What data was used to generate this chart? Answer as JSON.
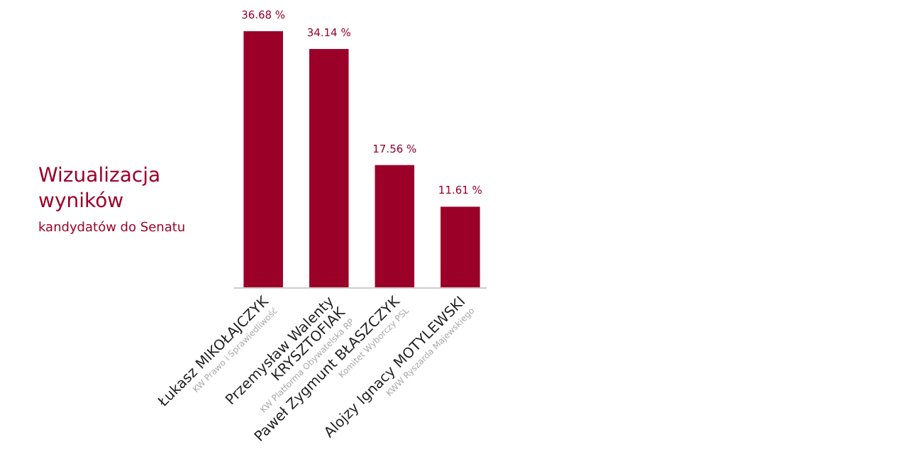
{
  "chart_data": {
    "type": "bar",
    "title": "Wizualizacja wyników",
    "subtitle": "kandydatów do Senatu",
    "categories": [
      "Łukasz MIKOŁAJCZYK\nKW Prawo i Sprawiedliwość",
      "Przemysław Walenty\nKRYSZTOFIAK\nKW Platforma Obywatelska RP",
      "Paweł Zygmunt BŁASZCZYK\nKomitet Wyborczy PSL",
      "Alojzy Ignacy MOTYLEWSKI\nKWW Ryszarda Majewskiego"
    ],
    "values": [
      36.68,
      34.14,
      17.56,
      11.61
    ],
    "value_labels": [
      "36.68 %",
      "34.14 %",
      "17.56 %",
      "11.61 %"
    ],
    "color": "#9b0029"
  }
}
